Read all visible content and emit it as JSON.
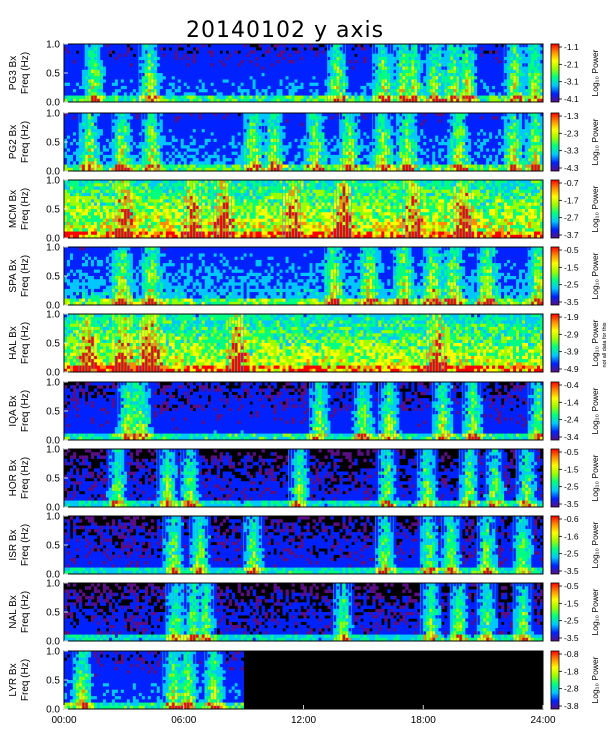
{
  "title": "20140102 y axis",
  "colors": {
    "background": "#000000",
    "colormap": [
      "#5a0f85",
      "#0022ff",
      "#00c8ff",
      "#00ff80",
      "#9cff00",
      "#ffff00",
      "#ff8c00",
      "#ff0000"
    ]
  },
  "chart_data": [
    {
      "type": "heatmap",
      "ylabel": [
        "PG3 Bx",
        "Freq (Hz)"
      ],
      "ylim": [
        0,
        1.0
      ],
      "yticks": [
        "0.0",
        "0.5",
        "1.0"
      ],
      "colorbar": {
        "label": "Log₁₀ Power",
        "ticks": [
          "-1.1",
          "-2.1",
          "-3.1",
          "-4.1"
        ]
      },
      "activity": 0.3,
      "bursts": [
        1.5,
        4.3,
        13.7,
        16.0,
        17.0,
        17.5,
        18.6,
        19.5,
        20.2,
        22.6,
        23.6
      ]
    },
    {
      "type": "heatmap",
      "ylabel": [
        "PG2 Bx",
        "Freq (Hz)"
      ],
      "ylim": [
        0,
        1.0
      ],
      "yticks": [
        "0.0",
        "0.5",
        "1.0"
      ],
      "colorbar": {
        "label": "Log₁₀ Power",
        "ticks": [
          "-1.3",
          "-2.3",
          "-3.3",
          "-4.3"
        ]
      },
      "activity": 0.35,
      "bursts": [
        1.3,
        2.9,
        4.4,
        9.5,
        10.5,
        12.6,
        14.3,
        16.0,
        17.2,
        19.8,
        22.5,
        23.6
      ]
    },
    {
      "type": "heatmap",
      "ylabel": [
        "MCM Bx",
        "Freq (Hz)"
      ],
      "ylim": [
        0,
        1.0
      ],
      "yticks": [
        "0.0",
        "0.5",
        "1.0"
      ],
      "colorbar": {
        "label": "Log₁₀ Power",
        "ticks": [
          "-0.7",
          "-1.7",
          "-2.7",
          "-3.7"
        ]
      },
      "activity": 0.85,
      "bursts": [
        3.0,
        6.5,
        8.0,
        11.5,
        14.0,
        17.5,
        20.0
      ]
    },
    {
      "type": "heatmap",
      "ylabel": [
        "SPA Bx",
        "Freq (Hz)"
      ],
      "ylim": [
        0,
        1.0
      ],
      "yticks": [
        "0.0",
        "0.5",
        "1.0"
      ],
      "colorbar": {
        "label": "Log₁₀ Power",
        "ticks": [
          "-0.5",
          "-1.5",
          "-2.5",
          "-3.5"
        ]
      },
      "activity": 0.4,
      "bursts": [
        2.9,
        4.4,
        13.5,
        15.3,
        17.0,
        18.5,
        19.5,
        21.2,
        23.8
      ]
    },
    {
      "type": "heatmap",
      "ylabel": [
        "HAL Bx",
        "Freq (Hz)"
      ],
      "ylim": [
        0,
        1.0
      ],
      "yticks": [
        "0.0",
        "0.5",
        "1.0"
      ],
      "colorbar": {
        "label": "Log₁₀ Power",
        "ticks": [
          "-1.9",
          "-2.9",
          "-3.9",
          "-4.9"
        ]
      },
      "activity": 0.8,
      "bursts": [
        1.2,
        3.0,
        4.2,
        4.5,
        8.7,
        18.7
      ]
    },
    {
      "type": "heatmap",
      "ylabel": [
        "IQA Bx",
        "Freq (Hz)"
      ],
      "ylim": [
        0,
        1.0
      ],
      "yticks": [
        "0.0",
        "0.5",
        "1.0"
      ],
      "colorbar": {
        "label": "Log₁₀ Power",
        "ticks": [
          "-0.4",
          "-1.4",
          "-2.4",
          "-3.4"
        ]
      },
      "activity": 0.25,
      "bursts": [
        3.2,
        3.6,
        3.9,
        12.8,
        15.0,
        16.3,
        19.0,
        20.5,
        23.8
      ]
    },
    {
      "type": "heatmap",
      "ylabel": [
        "HOR Bx",
        "Freq (Hz)"
      ],
      "ylim": [
        0,
        1.0
      ],
      "yticks": [
        "0.0",
        "0.5",
        "1.0"
      ],
      "colorbar": {
        "label": "Log₁₀ Power",
        "ticks": [
          "-0.5",
          "-1.5",
          "-2.5",
          "-3.5"
        ]
      },
      "activity": 0.2,
      "bursts": [
        2.7,
        5.2,
        6.3,
        11.8,
        16.2,
        18.2,
        20.3,
        21.6,
        23.2
      ]
    },
    {
      "type": "heatmap",
      "ylabel": [
        "ISR Bx",
        "Freq (Hz)"
      ],
      "ylim": [
        0,
        1.0
      ],
      "yticks": [
        "0.0",
        "0.5",
        "1.0"
      ],
      "colorbar": {
        "label": "Log₁₀ Power",
        "ticks": [
          "-0.6",
          "-1.6",
          "-2.5",
          "-3.5"
        ]
      },
      "activity": 0.22,
      "bursts": [
        5.5,
        6.8,
        9.5,
        16.1,
        18.3,
        19.4,
        21.2,
        23.0
      ]
    },
    {
      "type": "heatmap",
      "ylabel": [
        "NAL Bx",
        "Freq (Hz)"
      ],
      "ylim": [
        0,
        1.0
      ],
      "yticks": [
        "0.0",
        "0.5",
        "1.0"
      ],
      "colorbar": {
        "label": "Log₁₀ Power",
        "ticks": [
          "-0.5",
          "-1.5",
          "-2.5",
          "-3.5"
        ]
      },
      "activity": 0.2,
      "bursts": [
        5.6,
        6.5,
        7.1,
        14.0,
        18.4,
        19.8,
        21.2,
        23.0
      ]
    },
    {
      "type": "heatmap",
      "ylabel": [
        "LYR Bx",
        "Freq (Hz)"
      ],
      "ylim": [
        0,
        1.0
      ],
      "yticks": [
        "0.0",
        "0.5",
        "1.0"
      ],
      "colorbar": {
        "label": "Log₁₀ Power",
        "ticks": [
          "-0.8",
          "-1.8",
          "-2.8",
          "-3.8"
        ]
      },
      "activity": 0.3,
      "bursts": [
        0.9,
        5.5,
        6.2,
        7.5
      ],
      "data_end_hour": 9.0
    }
  ],
  "xaxis": {
    "ticks": [
      "00:00",
      "06:00",
      "12:00",
      "18:00",
      "24:00"
    ],
    "xlim": [
      0,
      24
    ]
  },
  "annotations": {
    "hal_colorbar_note": "not all data for this"
  }
}
